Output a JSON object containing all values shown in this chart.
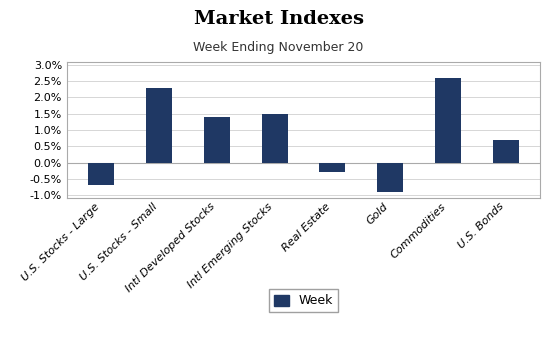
{
  "title": "Market Indexes",
  "subtitle": "Week Ending November 20",
  "categories": [
    "U.S. Stocks - Large",
    "U.S. Stocks - Small",
    "Intl Developed Stocks",
    "Intl Emerging Stocks",
    "Real Estate",
    "Gold",
    "Commodities",
    "U.S. Bonds"
  ],
  "values": [
    -0.007,
    0.023,
    0.014,
    0.015,
    -0.003,
    -0.009,
    0.026,
    0.007
  ],
  "bar_color": "#1F3864",
  "background_color": "#FFFFFF",
  "ylim": [
    -0.011,
    0.031
  ],
  "yticks": [
    -0.01,
    -0.005,
    0.0,
    0.005,
    0.01,
    0.015,
    0.02,
    0.025,
    0.03
  ],
  "legend_label": "Week",
  "title_fontsize": 14,
  "subtitle_fontsize": 9,
  "tick_fontsize": 8,
  "label_fontsize": 8,
  "bar_width": 0.45
}
